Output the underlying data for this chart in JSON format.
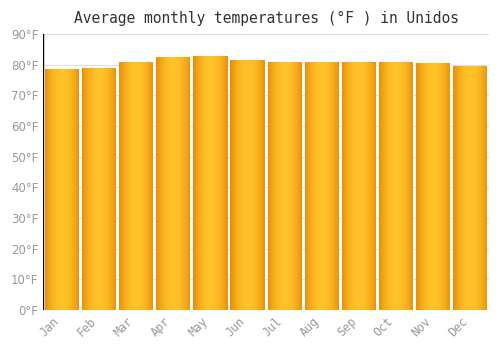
{
  "title": "Average monthly temperatures (°F ) in Unidos",
  "months": [
    "Jan",
    "Feb",
    "Mar",
    "Apr",
    "May",
    "Jun",
    "Jul",
    "Aug",
    "Sep",
    "Oct",
    "Nov",
    "Dec"
  ],
  "values": [
    78.5,
    79.0,
    81.0,
    82.5,
    83.0,
    81.5,
    81.0,
    81.0,
    81.0,
    81.0,
    80.5,
    79.5
  ],
  "ylim": [
    0,
    90
  ],
  "yticks": [
    0,
    10,
    20,
    30,
    40,
    50,
    60,
    70,
    80,
    90
  ],
  "bar_color_left": "#E8900A",
  "bar_color_mid": "#FFC228",
  "bar_color_right": "#E8900A",
  "background_color": "#FFFFFF",
  "grid_color": "#E0E0E8",
  "title_fontsize": 10.5,
  "tick_fontsize": 8.5,
  "bar_width": 0.92
}
